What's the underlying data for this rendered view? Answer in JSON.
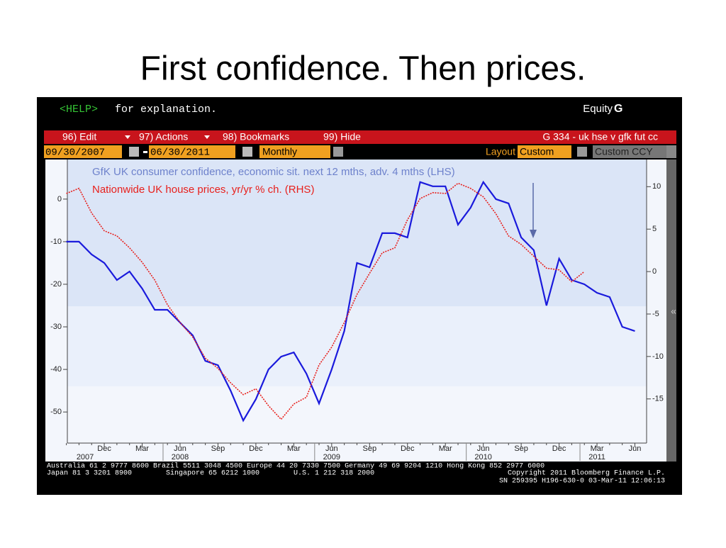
{
  "chart_data": {
    "type": "line",
    "title": "First confidence. Then prices.",
    "terminal": {
      "help_key": "<HELP>",
      "help_text": "for explanation.",
      "market": "Equity",
      "market_key": "G",
      "menu": [
        "96) Edit",
        "97) Actions",
        "98) Bookmarks",
        "99) Hide"
      ],
      "function": "G 334 - uk hse v gfk fut cc",
      "start_date": "09/30/2007",
      "end_date": "06/30/2011",
      "period": "Monthly",
      "layout_label": "Layout",
      "layout": "Custom",
      "currency": "Custom CCY",
      "footer": [
        "Australia 61 2 9777 8600 Brazil 5511 3048 4500 Europe 44 20 7330 7500 Germany 49 69 9204 1210 Hong Kong 852 2977 6000",
        "Japan 81 3 3201 8900        Singapore 65 6212 1000        U.S. 1 212 318 2000",
        "Copyright 2011 Bloomberg Finance L.P.",
        "SN 259395 H196-630-0 03-Mar-11 12:06:13"
      ]
    },
    "categories": [
      null,
      null,
      null,
      "Dec",
      null,
      null,
      "Mar",
      null,
      null,
      "Jun",
      null,
      null,
      "Sep",
      null,
      null,
      "Dec",
      null,
      null,
      "Mar",
      null,
      null,
      "Jun",
      null,
      null,
      "Sep",
      null,
      null,
      "Dec",
      null,
      null,
      "Mar",
      null,
      null,
      "Jun",
      null,
      null,
      "Sep",
      null,
      null,
      "Dec",
      null,
      null,
      "Mar",
      null,
      null,
      "Jun"
    ],
    "years": [
      null,
      null,
      null,
      "2007",
      null,
      null,
      null,
      null,
      null,
      "2008",
      null,
      null,
      null,
      null,
      null,
      null,
      null,
      null,
      null,
      null,
      null,
      "2009",
      null,
      null,
      null,
      null,
      null,
      null,
      null,
      null,
      null,
      null,
      null,
      "2010",
      null,
      null,
      null,
      null,
      null,
      null,
      null,
      null,
      "2011",
      null,
      null,
      null
    ],
    "series": [
      {
        "name": "GfK UK consumer confidence, economic sit. next 12 mths, adv. 4 mths (LHS)",
        "color": "#1a1adc",
        "axis": "y",
        "values": [
          -10,
          -10,
          -13,
          -15,
          -19,
          -17,
          -21,
          -26,
          -26,
          -29,
          -32,
          -38,
          -39,
          -45,
          -52,
          -47,
          -40,
          -37,
          -36,
          -41,
          -48,
          -40,
          -31,
          -15,
          -16,
          -8,
          -8,
          -9,
          4,
          3,
          3,
          -6,
          -2,
          4,
          0,
          -1,
          -9,
          -12,
          -25,
          -14,
          -19,
          -20,
          -22,
          -23,
          -30,
          -31
        ]
      },
      {
        "name": "Nationwide UK house prices, yr/yr % ch. (RHS)",
        "color": "#e8201c",
        "axis": "y2",
        "values": [
          9.2,
          9.8,
          6.9,
          4.8,
          4.2,
          2.8,
          1.1,
          -1,
          -3.9,
          -6,
          -7.7,
          -10.2,
          -11.4,
          -13.1,
          -14.5,
          -13.8,
          -15.8,
          -17.4,
          -15.6,
          -14.8,
          -11,
          -8.9,
          -6,
          -2.7,
          -0.2,
          2.2,
          2.8,
          6.1,
          8.6,
          9.3,
          9.2,
          10.4,
          9.8,
          8.8,
          6.8,
          4.2,
          3.2,
          1.8,
          0.4,
          0.2,
          -1.2,
          0,
          null,
          null,
          null,
          null
        ]
      }
    ],
    "ylim": [
      -57.3,
      9.3
    ],
    "yticks": [
      -50,
      -40,
      -30,
      -20,
      -10,
      0
    ],
    "y2lim": [
      -20.2,
      13.2
    ],
    "y2ticks": [
      -15,
      -10,
      -5,
      0,
      5,
      10
    ]
  }
}
